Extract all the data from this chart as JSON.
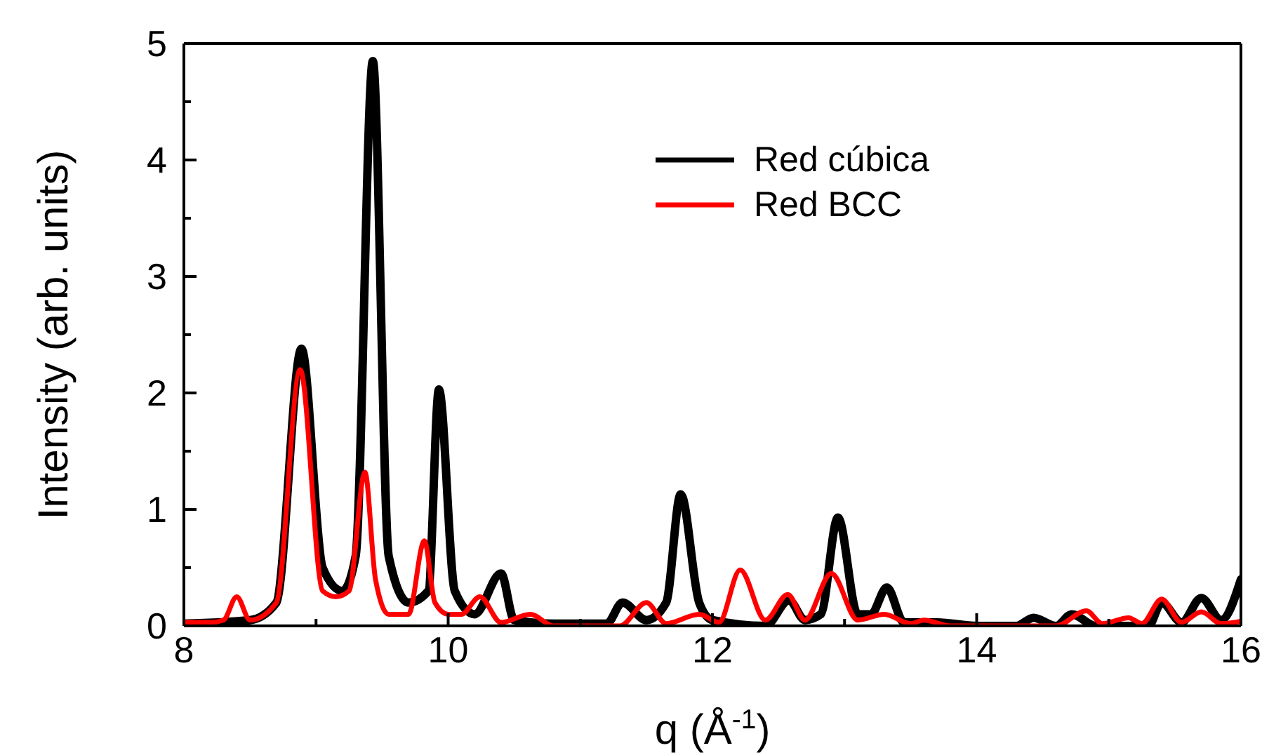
{
  "chart_data": {
    "type": "line",
    "xlabel": "q (Å$^{-1}$)",
    "ylabel": "Intensity (arb. units)",
    "xlim": [
      8,
      16
    ],
    "xticks": [
      8,
      {
        "value": 9,
        "label": null
      },
      10,
      {
        "value": 11,
        "label": null
      },
      12,
      {
        "value": 13,
        "label": null
      },
      14,
      {
        "value": 15,
        "label": null
      },
      16
    ],
    "ylim": [
      0,
      5
    ],
    "yticks": [
      0,
      {
        "value": 0.5,
        "label": null
      },
      1,
      {
        "value": 1.5,
        "label": null
      },
      2,
      {
        "value": 2.5,
        "label": null
      },
      3,
      {
        "value": 3.5,
        "label": null
      },
      4,
      {
        "value": 4.5,
        "label": null
      },
      5
    ],
    "grid": false,
    "legend": "top right",
    "marker": "none",
    "line_style": "solid",
    "series": [
      {
        "name": "Red cúbica",
        "color": "#000000",
        "x": [
          8.0,
          8.5,
          8.7,
          8.89,
          9.05,
          9.2,
          9.3,
          9.43,
          9.55,
          9.7,
          9.85,
          9.93,
          10.05,
          10.2,
          10.4,
          10.5,
          10.8,
          11.2,
          11.32,
          11.5,
          11.65,
          11.76,
          11.9,
          12.0,
          12.4,
          12.58,
          12.7,
          12.82,
          12.95,
          13.1,
          13.2,
          13.32,
          13.45,
          13.7,
          14.0,
          14.3,
          14.43,
          14.6,
          14.72,
          14.9,
          15.3,
          15.4,
          15.55,
          15.7,
          15.85,
          16.0
        ],
        "values": [
          0.02,
          0.05,
          0.2,
          2.38,
          0.5,
          0.3,
          0.6,
          4.85,
          0.6,
          0.2,
          0.3,
          2.03,
          0.3,
          0.1,
          0.45,
          0.05,
          0.02,
          0.02,
          0.2,
          0.05,
          0.2,
          1.13,
          0.2,
          0.05,
          0.0,
          0.22,
          0.05,
          0.1,
          0.93,
          0.1,
          0.1,
          0.33,
          0.03,
          0.03,
          0.0,
          0.0,
          0.07,
          0.0,
          0.1,
          0.0,
          0.0,
          0.2,
          0.03,
          0.24,
          0.05,
          0.4
        ]
      },
      {
        "name": "Red BCC",
        "color": "#ff0000",
        "x": [
          8.0,
          8.2,
          8.3,
          8.4,
          8.5,
          8.7,
          8.88,
          9.05,
          9.15,
          9.25,
          9.37,
          9.45,
          9.55,
          9.7,
          9.82,
          9.9,
          10.0,
          10.1,
          10.24,
          10.4,
          10.62,
          10.8,
          11.3,
          11.5,
          11.65,
          11.9,
          12.05,
          12.21,
          12.4,
          12.57,
          12.7,
          12.9,
          13.1,
          13.3,
          13.5,
          13.6,
          13.8,
          14.6,
          14.83,
          14.95,
          15.15,
          15.25,
          15.4,
          15.55,
          15.7,
          15.85,
          16.0
        ],
        "values": [
          0.03,
          0.03,
          0.05,
          0.25,
          0.05,
          0.2,
          2.2,
          0.3,
          0.25,
          0.3,
          1.32,
          0.4,
          0.1,
          0.1,
          0.73,
          0.2,
          0.1,
          0.1,
          0.25,
          0.03,
          0.1,
          0.0,
          0.0,
          0.2,
          0.02,
          0.1,
          0.03,
          0.48,
          0.05,
          0.27,
          0.05,
          0.45,
          0.05,
          0.1,
          0.02,
          0.05,
          0.0,
          0.0,
          0.13,
          0.02,
          0.07,
          0.02,
          0.23,
          0.03,
          0.12,
          0.02,
          0.04
        ]
      }
    ]
  }
}
